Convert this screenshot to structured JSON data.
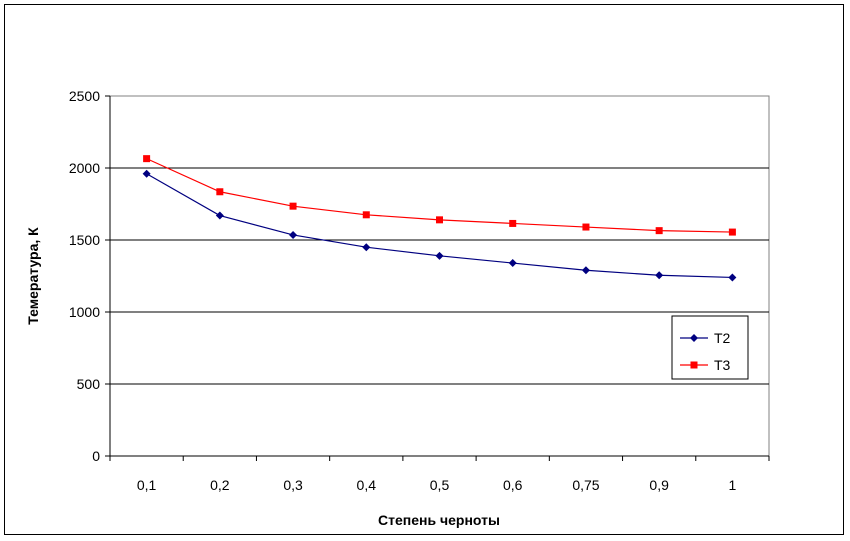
{
  "chart_data": {
    "type": "line",
    "categories": [
      "0,1",
      "0,2",
      "0,3",
      "0,4",
      "0,5",
      "0,6",
      "0,75",
      "0,9",
      "1"
    ],
    "series": [
      {
        "name": "T2",
        "color": "#000080",
        "marker": "diamond",
        "values": [
          1960,
          1670,
          1535,
          1450,
          1390,
          1340,
          1290,
          1255,
          1240
        ]
      },
      {
        "name": "T3",
        "color": "#ff0000",
        "marker": "square",
        "values": [
          2065,
          1835,
          1735,
          1675,
          1640,
          1615,
          1590,
          1565,
          1555
        ]
      }
    ],
    "xlabel": "Степень черноты",
    "ylabel": "Темература, К",
    "ylim": [
      0,
      2500
    ],
    "yticks": [
      0,
      500,
      1000,
      1500,
      2000,
      2500
    ],
    "grid": "horizontal",
    "legend": "right"
  }
}
